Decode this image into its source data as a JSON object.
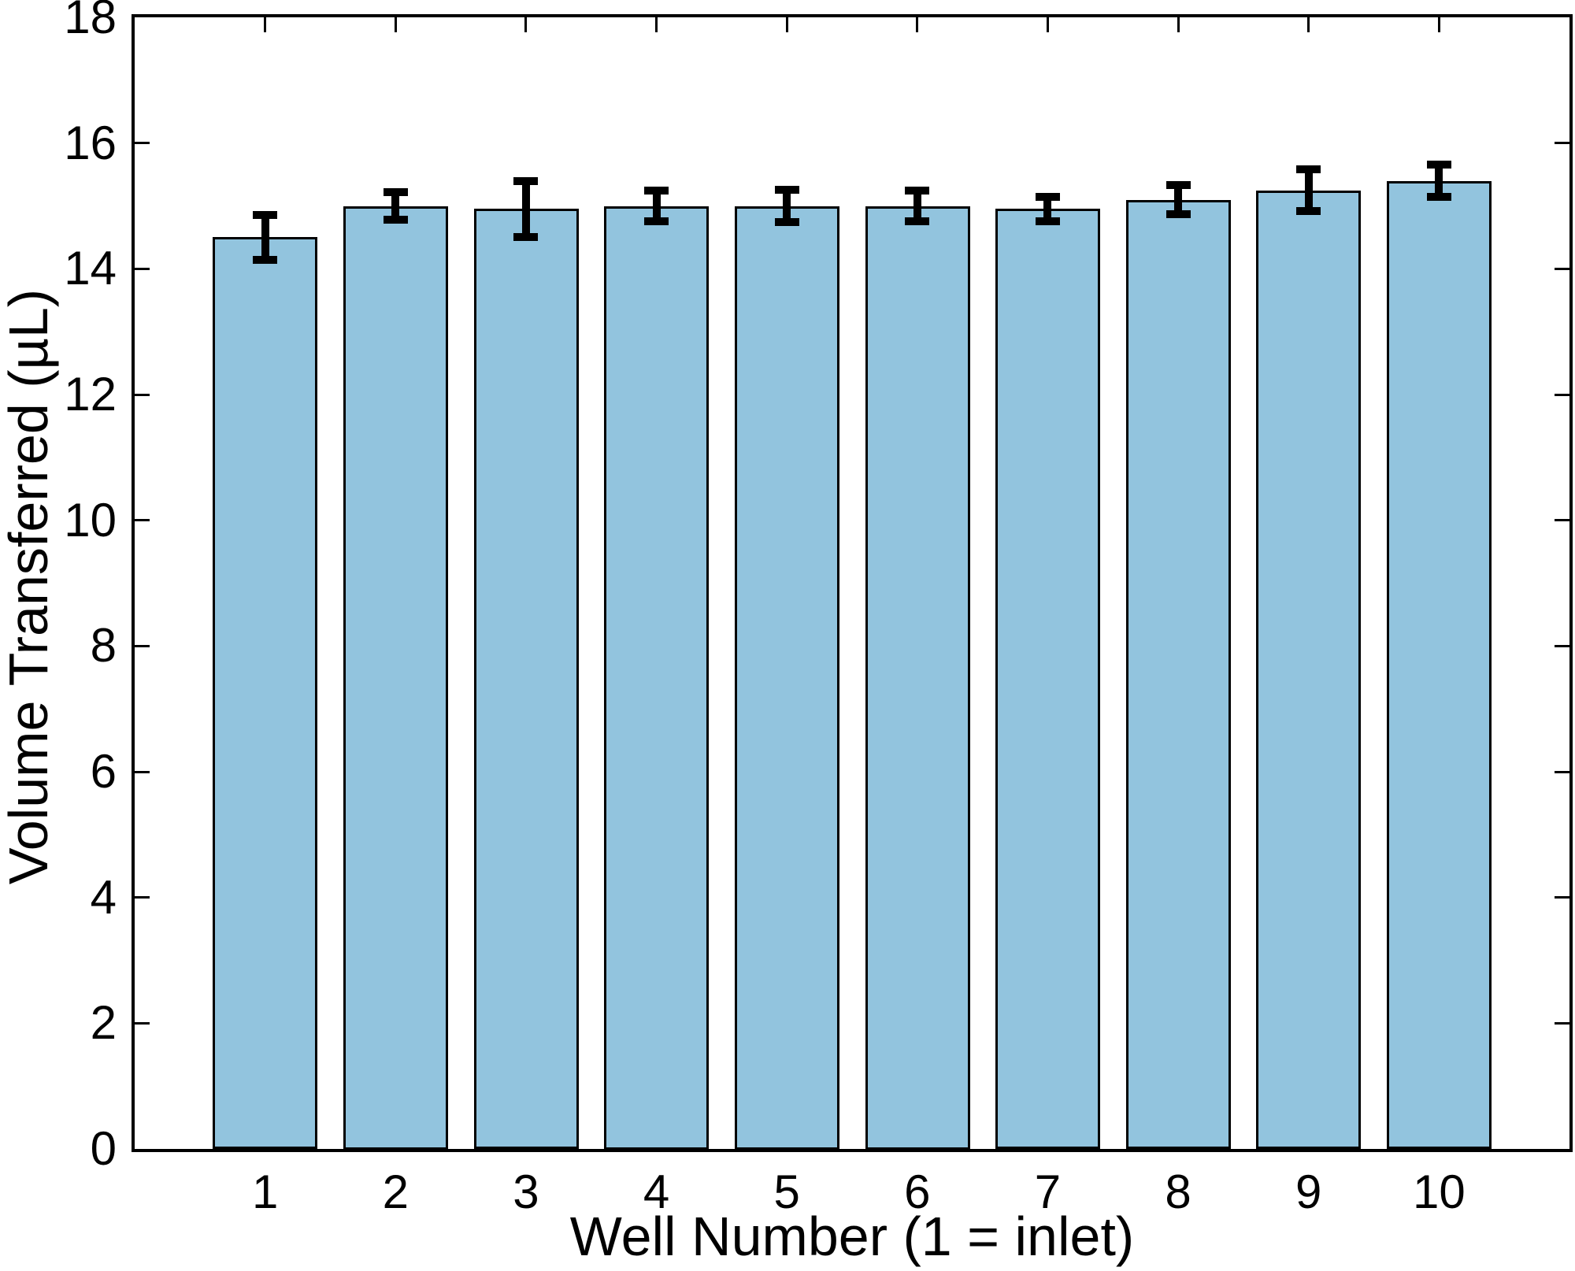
{
  "chart_data": {
    "type": "bar",
    "title": "",
    "xlabel": "Well Number (1 = inlet)",
    "ylabel": "Volume Transferred (µL)",
    "categories": [
      "1",
      "2",
      "3",
      "4",
      "5",
      "6",
      "7",
      "8",
      "9",
      "10"
    ],
    "values": [
      14.5,
      15.0,
      14.95,
      15.0,
      15.0,
      15.0,
      14.95,
      15.1,
      15.25,
      15.4
    ],
    "error_bars": [
      0.36,
      0.22,
      0.45,
      0.25,
      0.26,
      0.25,
      0.2,
      0.23,
      0.33,
      0.26
    ],
    "ylim": [
      0,
      18
    ],
    "xlim": [
      0,
      11
    ],
    "y_ticks": [
      0,
      2,
      4,
      6,
      8,
      10,
      12,
      14,
      16,
      18
    ],
    "bar_width_fraction": 0.8,
    "grid": false,
    "legend": null,
    "colors": {
      "bar_fill": "#92c4de",
      "bar_edge": "#000000",
      "error_bar": "#000000",
      "axis": "#000000",
      "background": "#ffffff"
    }
  }
}
